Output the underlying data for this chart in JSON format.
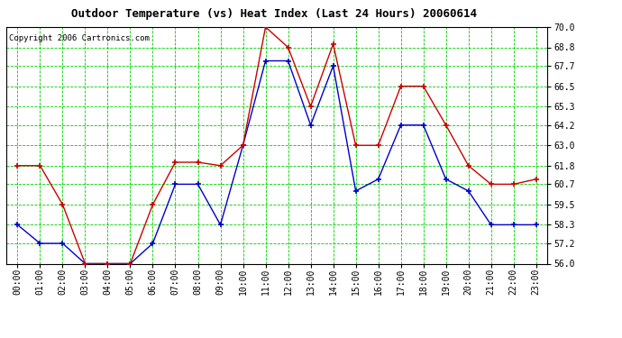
{
  "title": "Outdoor Temperature (vs) Heat Index (Last 24 Hours) 20060614",
  "copyright": "Copyright 2006 Cartronics.com",
  "hours": [
    "00:00",
    "01:00",
    "02:00",
    "03:00",
    "04:00",
    "05:00",
    "06:00",
    "07:00",
    "08:00",
    "09:00",
    "10:00",
    "11:00",
    "12:00",
    "13:00",
    "14:00",
    "15:00",
    "16:00",
    "17:00",
    "18:00",
    "19:00",
    "20:00",
    "21:00",
    "22:00",
    "23:00"
  ],
  "temp_blue": [
    58.3,
    57.2,
    57.2,
    56.0,
    56.0,
    56.0,
    57.2,
    60.7,
    60.7,
    58.3,
    63.0,
    68.0,
    68.0,
    64.2,
    67.7,
    60.3,
    61.0,
    64.2,
    64.2,
    61.0,
    60.3,
    58.3,
    58.3,
    58.3
  ],
  "heat_red": [
    61.8,
    61.8,
    59.5,
    56.0,
    56.0,
    56.0,
    59.5,
    62.0,
    62.0,
    61.8,
    63.0,
    70.0,
    68.8,
    65.3,
    69.0,
    63.0,
    63.0,
    66.5,
    66.5,
    64.2,
    61.8,
    60.7,
    60.7,
    61.0
  ],
  "ylim_min": 56.0,
  "ylim_max": 70.0,
  "yticks": [
    56.0,
    57.2,
    58.3,
    59.5,
    60.7,
    61.8,
    63.0,
    64.2,
    65.3,
    66.5,
    67.7,
    68.8,
    70.0
  ],
  "bg_color": "#ffffff",
  "grid_color": "#00cc00",
  "line_blue": "#0000cc",
  "line_red": "#cc0000",
  "title_fontsize": 9,
  "copyright_fontsize": 6.5,
  "tick_fontsize": 7,
  "ytick_fontsize": 7
}
